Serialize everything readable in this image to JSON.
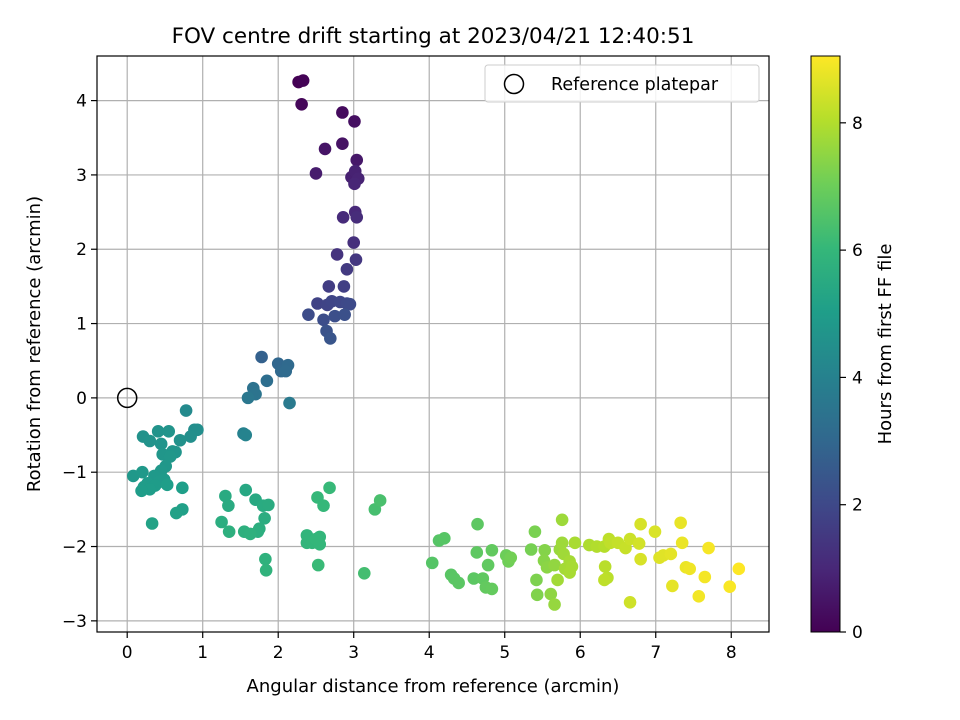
{
  "chart_data": {
    "type": "scatter",
    "title": "FOV centre drift starting at 2023/04/21 12:40:51",
    "xlabel": "Angular distance from reference (arcmin)",
    "ylabel": "Rotation from reference (arcmin)",
    "xlim": [
      -0.4,
      8.5
    ],
    "ylim": [
      -3.15,
      4.6
    ],
    "x_ticks": [
      0,
      1,
      2,
      3,
      4,
      5,
      6,
      7,
      8
    ],
    "y_ticks": [
      -3,
      -2,
      -1,
      0,
      1,
      2,
      3,
      4
    ],
    "grid": true,
    "legend": {
      "position": "top-right",
      "entries": [
        {
          "label": "Reference platepar",
          "marker": "open-circle"
        }
      ]
    },
    "reference_point": {
      "x": 0,
      "y": 0
    },
    "colorbar": {
      "label": "Hours from first FF file",
      "range": [
        0,
        9.05
      ],
      "ticks": [
        0,
        2,
        4,
        6,
        8
      ],
      "colormap": "viridis",
      "stops": [
        "#440154",
        "#482878",
        "#3e4989",
        "#31688e",
        "#26828e",
        "#1f9e89",
        "#35b779",
        "#6ece58",
        "#b5de2b",
        "#fde725"
      ]
    },
    "series": [
      {
        "x_y_t": [
          [
            2.27,
            4.25,
            0.0
          ],
          [
            2.33,
            4.27,
            0.05
          ],
          [
            2.31,
            3.95,
            0.15
          ],
          [
            2.85,
            3.84,
            0.25
          ],
          [
            3.01,
            3.72,
            0.35
          ],
          [
            2.85,
            3.42,
            0.45
          ],
          [
            2.62,
            3.35,
            0.5
          ],
          [
            3.04,
            3.2,
            0.6
          ],
          [
            2.5,
            3.02,
            0.7
          ],
          [
            2.97,
            2.97,
            0.8
          ],
          [
            3.02,
            3.05,
            0.85
          ],
          [
            3.06,
            2.95,
            0.9
          ],
          [
            3.01,
            2.88,
            0.95
          ],
          [
            3.02,
            2.5,
            1.05
          ],
          [
            2.86,
            2.43,
            1.1
          ],
          [
            3.04,
            2.43,
            1.15
          ],
          [
            3.0,
            2.09,
            1.25
          ],
          [
            2.78,
            1.93,
            1.35
          ],
          [
            3.03,
            1.86,
            1.45
          ],
          [
            2.91,
            1.73,
            1.55
          ],
          [
            2.67,
            1.5,
            1.65
          ],
          [
            2.87,
            1.5,
            1.7
          ],
          [
            2.52,
            1.27,
            1.8
          ],
          [
            2.65,
            1.25,
            1.85
          ],
          [
            2.71,
            1.3,
            1.9
          ],
          [
            2.82,
            1.29,
            1.95
          ],
          [
            2.91,
            1.27,
            2.0
          ],
          [
            2.95,
            1.26,
            2.05
          ],
          [
            2.4,
            1.12,
            2.1
          ],
          [
            2.6,
            1.05,
            2.15
          ],
          [
            2.75,
            1.1,
            2.2
          ],
          [
            2.88,
            1.12,
            2.25
          ],
          [
            2.64,
            0.9,
            2.3
          ],
          [
            2.69,
            0.8,
            2.4
          ],
          [
            1.78,
            0.55,
            2.8
          ],
          [
            2.0,
            0.46,
            3.0
          ],
          [
            2.04,
            0.36,
            3.05
          ],
          [
            2.13,
            0.44,
            3.1
          ],
          [
            2.1,
            0.36,
            3.15
          ],
          [
            1.85,
            0.23,
            3.25
          ],
          [
            1.67,
            0.13,
            3.4
          ],
          [
            1.7,
            0.05,
            3.5
          ],
          [
            1.6,
            0.0,
            3.6
          ],
          [
            2.15,
            -0.07,
            3.7
          ],
          [
            1.54,
            -0.48,
            4.0
          ],
          [
            1.57,
            -0.5,
            4.05
          ],
          [
            0.78,
            -0.17,
            4.3
          ],
          [
            0.89,
            -0.43,
            4.4
          ],
          [
            0.93,
            -0.43,
            4.45
          ],
          [
            0.84,
            -0.52,
            4.5
          ],
          [
            0.7,
            -0.57,
            4.55
          ],
          [
            0.21,
            -0.52,
            4.6
          ],
          [
            0.3,
            -0.58,
            4.62
          ],
          [
            0.41,
            -0.45,
            4.64
          ],
          [
            0.55,
            -0.45,
            4.66
          ],
          [
            0.45,
            -0.62,
            4.68
          ],
          [
            0.6,
            -0.72,
            4.7
          ],
          [
            0.64,
            -0.73,
            4.72
          ],
          [
            0.47,
            -0.76,
            4.74
          ],
          [
            0.57,
            -0.79,
            4.76
          ],
          [
            0.51,
            -0.92,
            4.78
          ],
          [
            0.45,
            -0.98,
            4.8
          ],
          [
            0.08,
            -1.05,
            4.82
          ],
          [
            0.2,
            -1.0,
            4.84
          ],
          [
            0.36,
            -1.05,
            4.86
          ],
          [
            0.49,
            -1.1,
            4.88
          ],
          [
            0.42,
            -1.13,
            4.9
          ],
          [
            0.27,
            -1.15,
            4.92
          ],
          [
            0.22,
            -1.2,
            4.94
          ],
          [
            0.37,
            -1.18,
            4.96
          ],
          [
            0.3,
            -1.23,
            4.98
          ],
          [
            0.19,
            -1.25,
            5.0
          ],
          [
            0.53,
            -1.17,
            5.02
          ],
          [
            0.73,
            -1.21,
            5.05
          ],
          [
            0.73,
            -1.5,
            5.1
          ],
          [
            0.65,
            -1.55,
            5.15
          ],
          [
            0.33,
            -1.69,
            5.2
          ],
          [
            1.57,
            -1.24,
            5.4
          ],
          [
            1.7,
            -1.37,
            5.45
          ],
          [
            1.3,
            -1.32,
            5.5
          ],
          [
            1.34,
            -1.45,
            5.52
          ],
          [
            1.8,
            -1.45,
            5.55
          ],
          [
            1.87,
            -1.44,
            5.57
          ],
          [
            1.82,
            -1.62,
            5.6
          ],
          [
            1.25,
            -1.67,
            5.62
          ],
          [
            1.75,
            -1.76,
            5.65
          ],
          [
            1.73,
            -1.8,
            5.67
          ],
          [
            1.35,
            -1.8,
            5.7
          ],
          [
            1.55,
            -1.8,
            5.72
          ],
          [
            1.63,
            -1.83,
            5.75
          ],
          [
            1.83,
            -2.17,
            5.8
          ],
          [
            1.84,
            -2.32,
            5.85
          ],
          [
            2.38,
            -1.85,
            5.9
          ],
          [
            2.38,
            -1.95,
            5.92
          ],
          [
            2.45,
            -1.95,
            5.94
          ],
          [
            2.55,
            -1.87,
            5.96
          ],
          [
            2.55,
            -1.97,
            5.98
          ],
          [
            2.5,
            -1.9,
            6.0
          ],
          [
            2.52,
            -1.34,
            6.02
          ],
          [
            2.6,
            -1.45,
            6.04
          ],
          [
            2.68,
            -1.21,
            6.06
          ],
          [
            2.53,
            -2.25,
            6.1
          ],
          [
            3.14,
            -2.36,
            6.3
          ],
          [
            3.28,
            -1.5,
            6.35
          ],
          [
            3.35,
            -1.38,
            6.4
          ],
          [
            4.04,
            -2.22,
            6.6
          ],
          [
            4.13,
            -1.92,
            6.62
          ],
          [
            4.2,
            -1.89,
            6.64
          ],
          [
            4.29,
            -2.38,
            6.66
          ],
          [
            4.33,
            -2.43,
            6.68
          ],
          [
            4.39,
            -2.49,
            6.7
          ],
          [
            4.59,
            -2.43,
            6.72
          ],
          [
            4.64,
            -1.7,
            6.74
          ],
          [
            4.63,
            -2.08,
            6.76
          ],
          [
            4.71,
            -2.43,
            6.78
          ],
          [
            4.78,
            -2.25,
            6.8
          ],
          [
            4.83,
            -2.05,
            6.82
          ],
          [
            4.75,
            -2.55,
            6.84
          ],
          [
            4.83,
            -2.57,
            6.86
          ],
          [
            5.02,
            -2.12,
            7.0
          ],
          [
            5.05,
            -2.2,
            7.05
          ],
          [
            5.08,
            -2.15,
            7.1
          ],
          [
            5.35,
            -2.04,
            7.15
          ],
          [
            5.4,
            -1.8,
            7.2
          ],
          [
            5.42,
            -2.45,
            7.25
          ],
          [
            5.43,
            -2.65,
            7.3
          ],
          [
            5.53,
            -2.05,
            7.35
          ],
          [
            5.52,
            -2.19,
            7.4
          ],
          [
            5.56,
            -2.28,
            7.45
          ],
          [
            5.61,
            -2.64,
            7.5
          ],
          [
            5.66,
            -2.25,
            7.55
          ],
          [
            5.66,
            -2.78,
            7.6
          ],
          [
            5.73,
            -2.04,
            7.65
          ],
          [
            5.76,
            -1.64,
            7.7
          ],
          [
            5.76,
            -1.95,
            7.72
          ],
          [
            5.78,
            -2.1,
            7.75
          ],
          [
            5.7,
            -2.45,
            7.77
          ],
          [
            5.8,
            -2.3,
            7.8
          ],
          [
            5.86,
            -2.2,
            7.82
          ],
          [
            5.89,
            -2.27,
            7.84
          ],
          [
            5.86,
            -2.35,
            7.86
          ],
          [
            5.93,
            -1.95,
            7.88
          ],
          [
            6.12,
            -1.98,
            7.95
          ],
          [
            6.22,
            -2.0,
            8.0
          ],
          [
            6.32,
            -2.0,
            8.05
          ],
          [
            6.33,
            -2.27,
            8.1
          ],
          [
            6.36,
            -2.42,
            8.12
          ],
          [
            6.38,
            -1.9,
            8.15
          ],
          [
            6.32,
            -2.45,
            8.17
          ],
          [
            6.4,
            -1.95,
            8.2
          ],
          [
            6.5,
            -1.95,
            8.25
          ],
          [
            6.6,
            -2.02,
            8.3
          ],
          [
            6.66,
            -1.9,
            8.35
          ],
          [
            6.66,
            -2.75,
            8.4
          ],
          [
            6.78,
            -1.96,
            8.45
          ],
          [
            6.8,
            -1.7,
            8.5
          ],
          [
            6.8,
            -2.17,
            8.52
          ],
          [
            6.99,
            -1.8,
            8.55
          ],
          [
            7.05,
            -2.15,
            8.6
          ],
          [
            7.1,
            -2.12,
            8.65
          ],
          [
            7.2,
            -2.1,
            8.7
          ],
          [
            7.22,
            -2.53,
            8.72
          ],
          [
            7.33,
            -1.68,
            8.75
          ],
          [
            7.35,
            -1.95,
            8.78
          ],
          [
            7.4,
            -2.28,
            8.8
          ],
          [
            7.45,
            -2.3,
            8.85
          ],
          [
            7.57,
            -2.67,
            8.9
          ],
          [
            7.65,
            -2.41,
            8.92
          ],
          [
            7.7,
            -2.02,
            8.95
          ],
          [
            7.98,
            -2.54,
            9.0
          ],
          [
            8.1,
            -2.3,
            9.05
          ]
        ]
      }
    ]
  }
}
